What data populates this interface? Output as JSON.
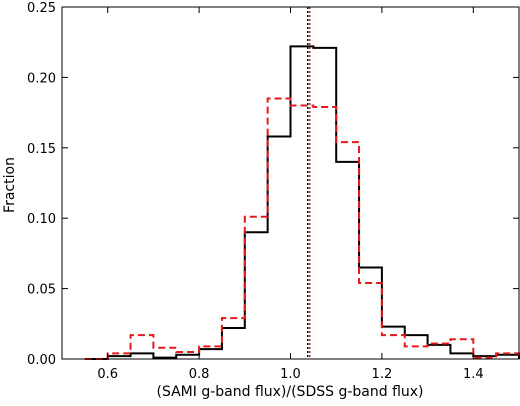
{
  "chart_data": {
    "type": "histogram",
    "xlabel": "(SAMI g-band flux)/(SDSS g-band flux)",
    "ylabel": "Fraction",
    "xlim": [
      0.5,
      1.5
    ],
    "ylim": [
      0.0,
      0.25
    ],
    "xticks": [
      0.6,
      0.8,
      1.0,
      1.2,
      1.4
    ],
    "xtick_labels": [
      "0.6",
      "0.8",
      "1.0",
      "1.2",
      "1.4"
    ],
    "yticks": [
      0.0,
      0.05,
      0.1,
      0.15,
      0.2,
      0.25
    ],
    "ytick_labels": [
      "0.00",
      "0.05",
      "0.10",
      "0.15",
      "0.20",
      "0.25"
    ],
    "grid": false,
    "bin_edges": [
      0.55,
      0.6,
      0.65,
      0.7,
      0.75,
      0.8,
      0.85,
      0.9,
      0.95,
      1.0,
      1.05,
      1.1,
      1.15,
      1.2,
      1.25,
      1.3,
      1.35,
      1.4,
      1.45,
      1.5
    ],
    "series": [
      {
        "style": "solid",
        "color": "#000000",
        "values": [
          0.0,
          0.002,
          0.004,
          0.001,
          0.003,
          0.007,
          0.022,
          0.09,
          0.158,
          0.222,
          0.221,
          0.14,
          0.065,
          0.023,
          0.017,
          0.01,
          0.004,
          0.002,
          0.003
        ]
      },
      {
        "style": "dashed",
        "color": "#e31a1c",
        "values": [
          0.0,
          0.004,
          0.017,
          0.008,
          0.005,
          0.009,
          0.029,
          0.101,
          0.185,
          0.18,
          0.179,
          0.154,
          0.054,
          0.017,
          0.009,
          0.011,
          0.014,
          0.001,
          0.004
        ]
      }
    ],
    "vlines": [
      {
        "x": 1.04,
        "style": "dotted",
        "color": "#000000"
      },
      {
        "x": 1.04,
        "style": "dotted",
        "color": "#e31a1c"
      }
    ]
  }
}
